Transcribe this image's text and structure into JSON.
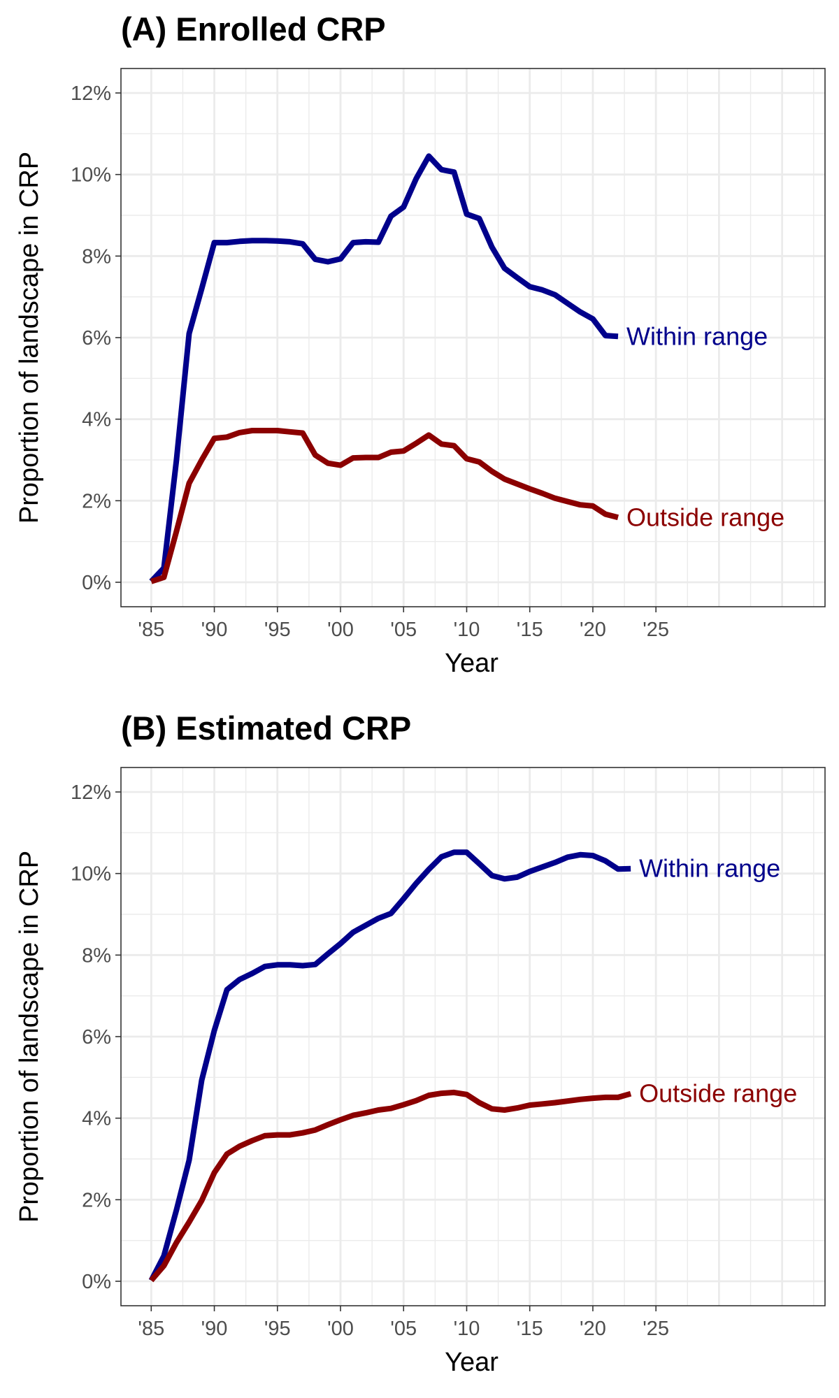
{
  "chart_data": [
    {
      "type": "line",
      "title": "(A) Enrolled CRP",
      "xlabel": "Year",
      "ylabel": "Proportion of landscape in CRP",
      "x_tick_labels": [
        "'85",
        "'90",
        "'95",
        "'00",
        "'05",
        "'10",
        "'15",
        "'20",
        "'25"
      ],
      "x_tick_values": [
        1985,
        1990,
        1995,
        2000,
        2005,
        2010,
        2015,
        2020,
        2025
      ],
      "y_tick_labels": [
        "0%",
        "2%",
        "4%",
        "6%",
        "8%",
        "10%",
        "12%"
      ],
      "y_tick_values": [
        0,
        2,
        4,
        6,
        8,
        10,
        12
      ],
      "xlim": [
        1982.6,
        2038.4
      ],
      "ylim": [
        -0.6,
        12.6
      ],
      "grid": true,
      "legend": "direct labels at line ends",
      "series": [
        {
          "name": "Within range",
          "color": "#00008B",
          "x": [
            1985,
            1986,
            1987,
            1988,
            1989,
            1990,
            1991,
            1992,
            1993,
            1994,
            1995,
            1996,
            1997,
            1998,
            1999,
            2000,
            2001,
            2002,
            2003,
            2004,
            2005,
            2006,
            2007,
            2008,
            2009,
            2010,
            2011,
            2012,
            2013,
            2014,
            2015,
            2016,
            2017,
            2018,
            2019,
            2020,
            2021,
            2022
          ],
          "y": [
            0.02,
            0.35,
            3.0,
            6.1,
            7.2,
            8.33,
            8.33,
            8.36,
            8.38,
            8.38,
            8.37,
            8.35,
            8.3,
            7.92,
            7.86,
            7.93,
            8.33,
            8.35,
            8.34,
            8.98,
            9.2,
            9.9,
            10.45,
            10.12,
            10.06,
            9.03,
            8.92,
            8.22,
            7.7,
            7.47,
            7.25,
            7.17,
            7.05,
            6.84,
            6.63,
            6.46,
            6.05,
            6.03
          ]
        },
        {
          "name": "Outside range",
          "color": "#8B0000",
          "x": [
            1985,
            1986,
            1987,
            1988,
            1989,
            1990,
            1991,
            1992,
            1993,
            1994,
            1995,
            1996,
            1997,
            1998,
            1999,
            2000,
            2001,
            2002,
            2003,
            2004,
            2005,
            2006,
            2007,
            2008,
            2009,
            2010,
            2011,
            2012,
            2013,
            2014,
            2015,
            2016,
            2017,
            2018,
            2019,
            2020,
            2021,
            2022
          ],
          "y": [
            0.02,
            0.12,
            1.25,
            2.43,
            3.0,
            3.53,
            3.56,
            3.67,
            3.72,
            3.72,
            3.72,
            3.69,
            3.66,
            3.12,
            2.92,
            2.87,
            3.05,
            3.06,
            3.06,
            3.19,
            3.22,
            3.41,
            3.61,
            3.39,
            3.35,
            3.03,
            2.95,
            2.72,
            2.53,
            2.41,
            2.29,
            2.18,
            2.06,
            1.98,
            1.9,
            1.87,
            1.67,
            1.59
          ]
        }
      ]
    },
    {
      "type": "line",
      "title": "(B) Estimated CRP",
      "xlabel": "Year",
      "ylabel": "Proportion of landscape in CRP",
      "x_tick_labels": [
        "'85",
        "'90",
        "'95",
        "'00",
        "'05",
        "'10",
        "'15",
        "'20",
        "'25"
      ],
      "x_tick_values": [
        1985,
        1990,
        1995,
        2000,
        2005,
        2010,
        2015,
        2020,
        2025
      ],
      "y_tick_labels": [
        "0%",
        "2%",
        "4%",
        "6%",
        "8%",
        "10%",
        "12%"
      ],
      "y_tick_values": [
        0,
        2,
        4,
        6,
        8,
        10,
        12
      ],
      "xlim": [
        1982.6,
        2038.4
      ],
      "ylim": [
        -0.6,
        12.6
      ],
      "grid": true,
      "legend": "direct labels at line ends",
      "series": [
        {
          "name": "Within range",
          "color": "#00008B",
          "x": [
            1985,
            1986,
            1987,
            1988,
            1989,
            1990,
            1991,
            1992,
            1993,
            1994,
            1995,
            1996,
            1997,
            1998,
            1999,
            2000,
            2001,
            2002,
            2003,
            2004,
            2005,
            2006,
            2007,
            2008,
            2009,
            2010,
            2011,
            2012,
            2013,
            2014,
            2015,
            2016,
            2017,
            2018,
            2019,
            2020,
            2021,
            2022,
            2023
          ],
          "y": [
            0.02,
            0.62,
            1.75,
            2.97,
            4.93,
            6.15,
            7.15,
            7.4,
            7.55,
            7.72,
            7.76,
            7.76,
            7.74,
            7.77,
            8.03,
            8.28,
            8.56,
            8.73,
            8.9,
            9.02,
            9.38,
            9.76,
            10.1,
            10.41,
            10.52,
            10.52,
            10.24,
            9.95,
            9.87,
            9.91,
            10.05,
            10.16,
            10.27,
            10.4,
            10.46,
            10.44,
            10.31,
            10.11,
            10.12
          ]
        },
        {
          "name": "Outside range",
          "color": "#8B0000",
          "x": [
            1985,
            1986,
            1987,
            1988,
            1989,
            1990,
            1991,
            1992,
            1993,
            1994,
            1995,
            1996,
            1997,
            1998,
            1999,
            2000,
            2001,
            2002,
            2003,
            2004,
            2005,
            2006,
            2007,
            2008,
            2009,
            2010,
            2011,
            2012,
            2013,
            2014,
            2015,
            2016,
            2017,
            2018,
            2019,
            2020,
            2021,
            2022,
            2023
          ],
          "y": [
            0.02,
            0.38,
            0.95,
            1.45,
            1.98,
            2.66,
            3.12,
            3.31,
            3.45,
            3.57,
            3.59,
            3.59,
            3.64,
            3.71,
            3.84,
            3.96,
            4.07,
            4.13,
            4.2,
            4.24,
            4.33,
            4.43,
            4.56,
            4.61,
            4.63,
            4.58,
            4.38,
            4.23,
            4.2,
            4.25,
            4.32,
            4.35,
            4.38,
            4.42,
            4.46,
            4.49,
            4.51,
            4.51,
            4.6
          ]
        }
      ]
    }
  ]
}
